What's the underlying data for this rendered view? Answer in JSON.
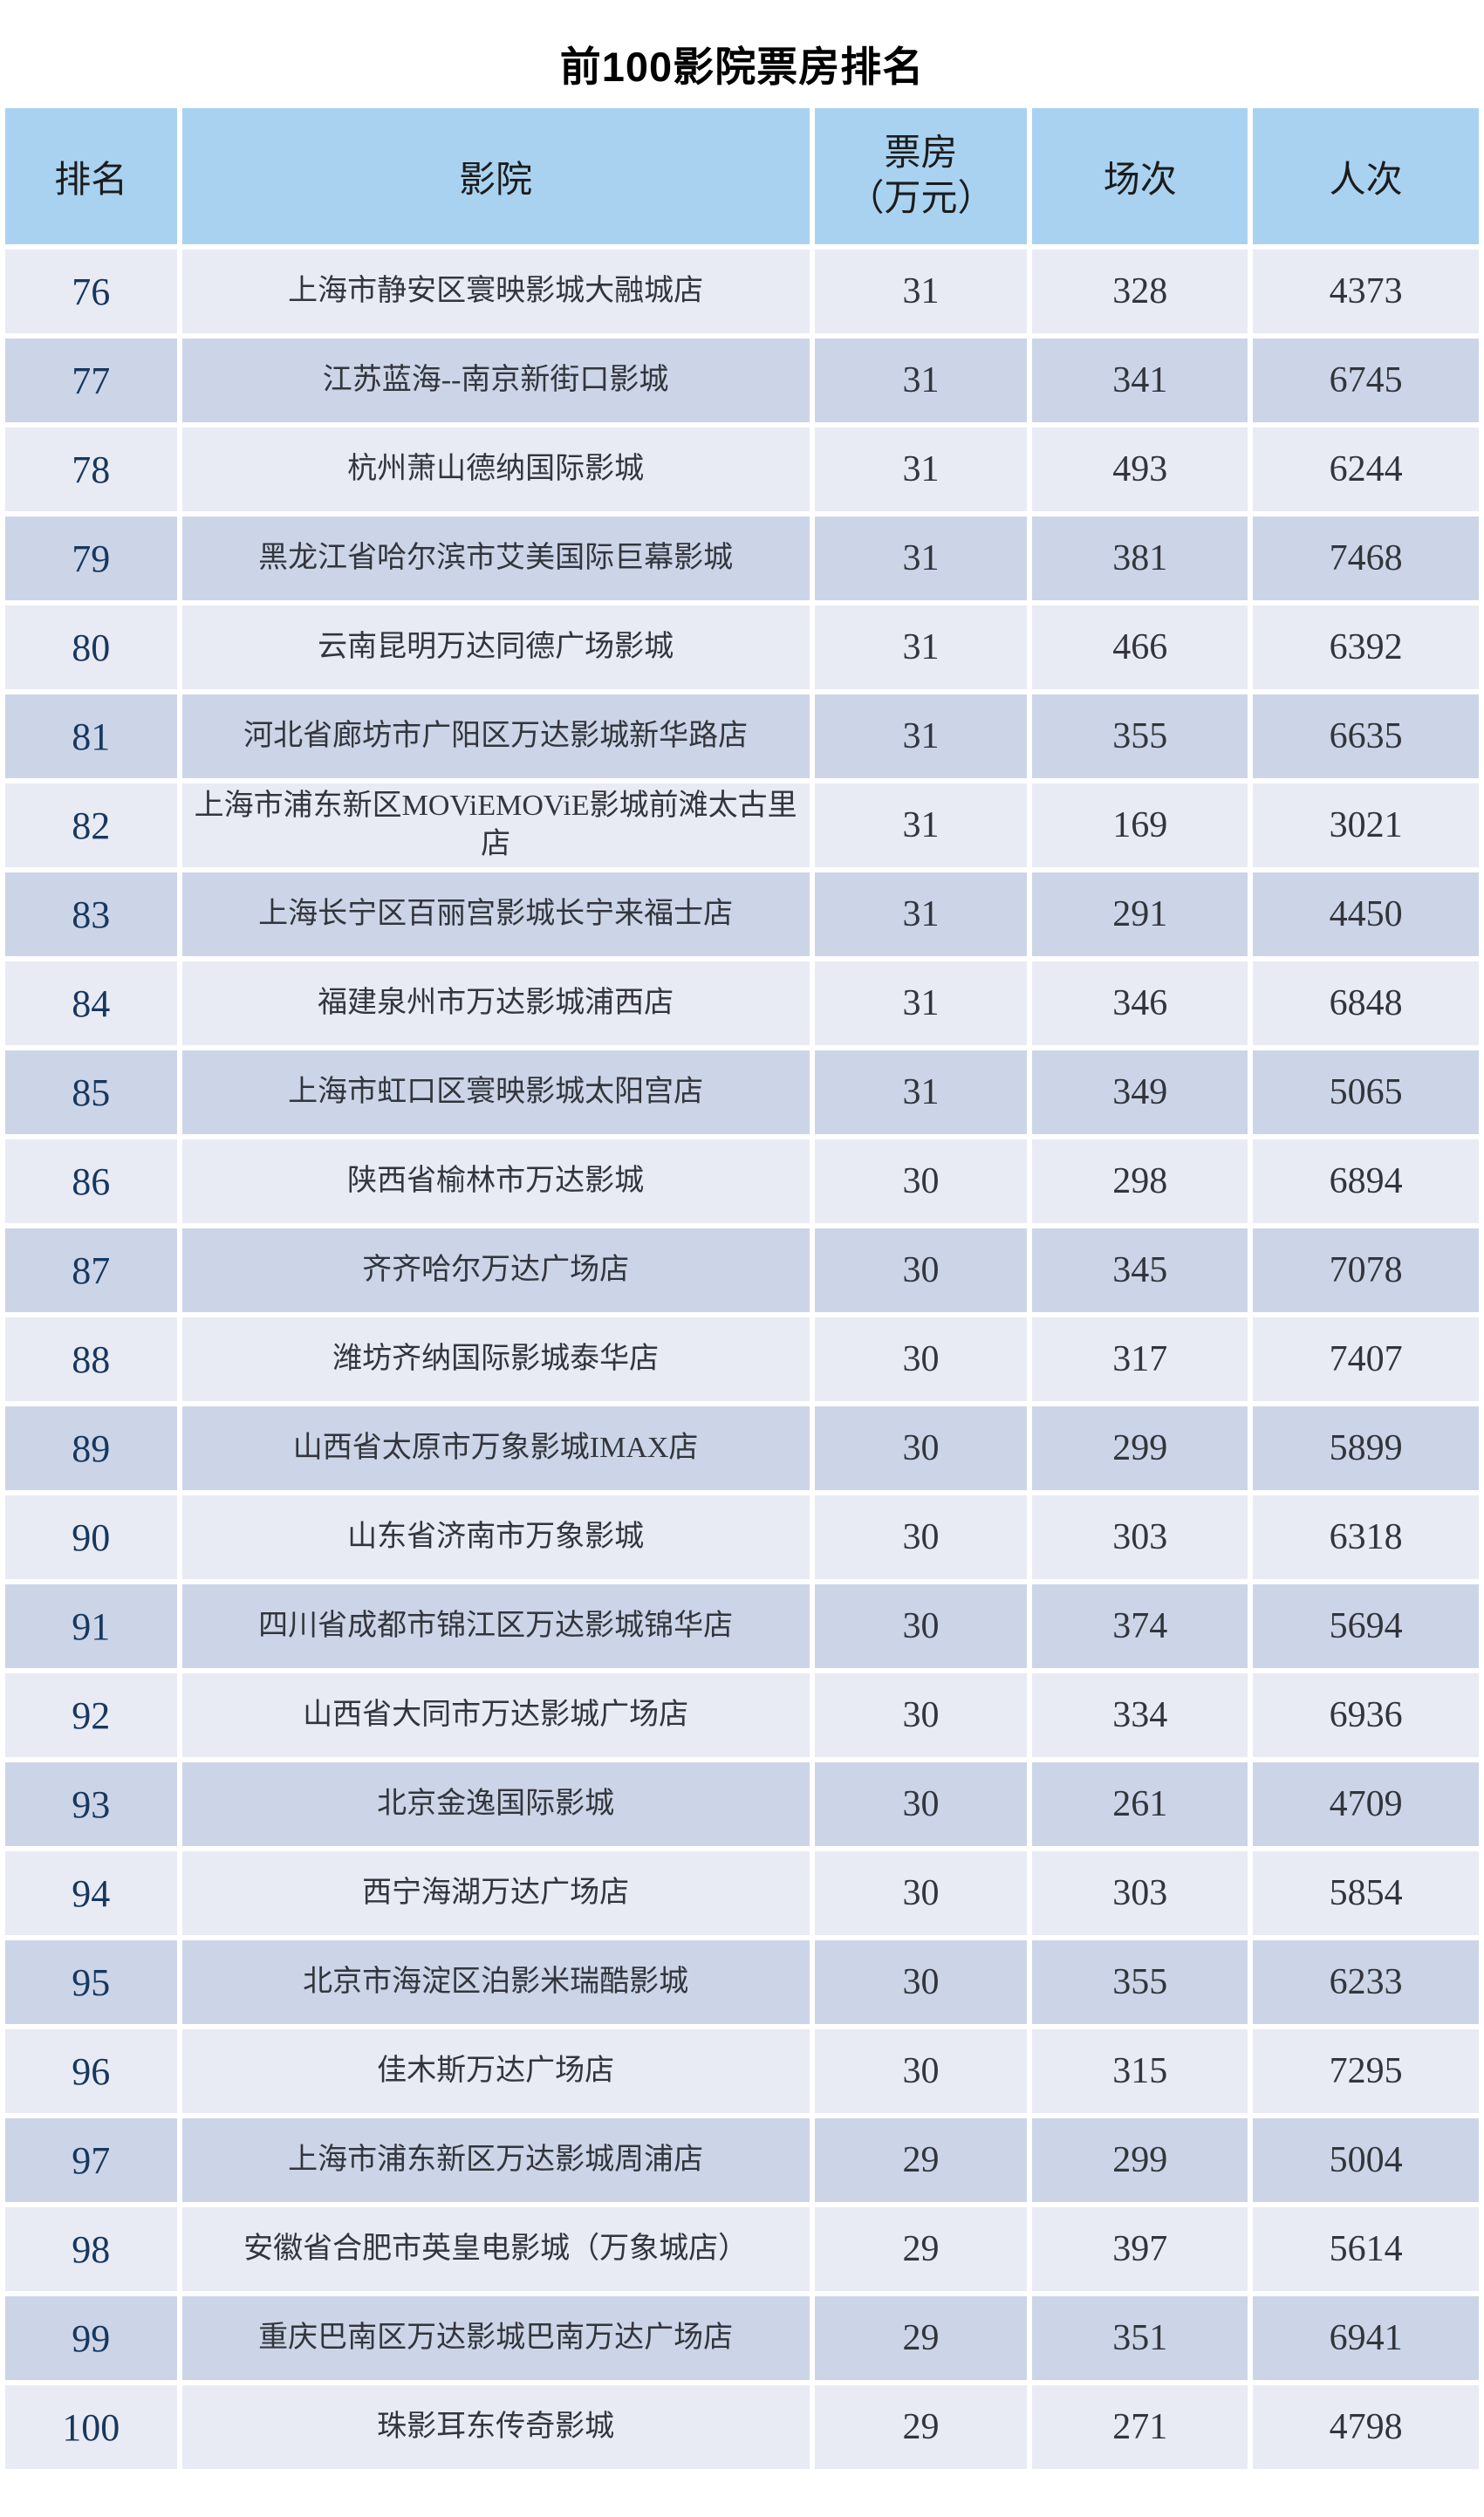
{
  "title": "前100影院票房排名",
  "colors": {
    "header_bg": "#a9d2f1",
    "row_band_light": "#e9ebf4",
    "row_band_dark": "#ccd5e8",
    "rank_text": "#17375e",
    "body_text": "#32353b",
    "title_text": "#000000"
  },
  "table": {
    "headers": [
      "排名",
      "影院",
      "票房\n（万元）",
      "场次",
      "人次"
    ],
    "rows": [
      {
        "rank": "76",
        "cinema": "上海市静安区寰映影城大融城店",
        "box_office": "31",
        "sessions": "328",
        "admissions": "4373"
      },
      {
        "rank": "77",
        "cinema": "江苏蓝海--南京新街口影城",
        "box_office": "31",
        "sessions": "341",
        "admissions": "6745"
      },
      {
        "rank": "78",
        "cinema": "杭州萧山德纳国际影城",
        "box_office": "31",
        "sessions": "493",
        "admissions": "6244"
      },
      {
        "rank": "79",
        "cinema": "黑龙江省哈尔滨市艾美国际巨幕影城",
        "box_office": "31",
        "sessions": "381",
        "admissions": "7468"
      },
      {
        "rank": "80",
        "cinema": "云南昆明万达同德广场影城",
        "box_office": "31",
        "sessions": "466",
        "admissions": "6392"
      },
      {
        "rank": "81",
        "cinema": "河北省廊坊市广阳区万达影城新华路店",
        "box_office": "31",
        "sessions": "355",
        "admissions": "6635"
      },
      {
        "rank": "82",
        "cinema": "上海市浦东新区MOViEMOViE影城前滩太古里店",
        "box_office": "31",
        "sessions": "169",
        "admissions": "3021"
      },
      {
        "rank": "83",
        "cinema": "上海长宁区百丽宫影城长宁来福士店",
        "box_office": "31",
        "sessions": "291",
        "admissions": "4450"
      },
      {
        "rank": "84",
        "cinema": "福建泉州市万达影城浦西店",
        "box_office": "31",
        "sessions": "346",
        "admissions": "6848"
      },
      {
        "rank": "85",
        "cinema": "上海市虹口区寰映影城太阳宫店",
        "box_office": "31",
        "sessions": "349",
        "admissions": "5065"
      },
      {
        "rank": "86",
        "cinema": "陕西省榆林市万达影城",
        "box_office": "30",
        "sessions": "298",
        "admissions": "6894"
      },
      {
        "rank": "87",
        "cinema": "齐齐哈尔万达广场店",
        "box_office": "30",
        "sessions": "345",
        "admissions": "7078"
      },
      {
        "rank": "88",
        "cinema": "潍坊齐纳国际影城泰华店",
        "box_office": "30",
        "sessions": "317",
        "admissions": "7407"
      },
      {
        "rank": "89",
        "cinema": "山西省太原市万象影城IMAX店",
        "box_office": "30",
        "sessions": "299",
        "admissions": "5899"
      },
      {
        "rank": "90",
        "cinema": "山东省济南市万象影城",
        "box_office": "30",
        "sessions": "303",
        "admissions": "6318"
      },
      {
        "rank": "91",
        "cinema": "四川省成都市锦江区万达影城锦华店",
        "box_office": "30",
        "sessions": "374",
        "admissions": "5694"
      },
      {
        "rank": "92",
        "cinema": "山西省大同市万达影城广场店",
        "box_office": "30",
        "sessions": "334",
        "admissions": "6936"
      },
      {
        "rank": "93",
        "cinema": "北京金逸国际影城",
        "box_office": "30",
        "sessions": "261",
        "admissions": "4709"
      },
      {
        "rank": "94",
        "cinema": "西宁海湖万达广场店",
        "box_office": "30",
        "sessions": "303",
        "admissions": "5854"
      },
      {
        "rank": "95",
        "cinema": "北京市海淀区泊影米瑞酷影城",
        "box_office": "30",
        "sessions": "355",
        "admissions": "6233"
      },
      {
        "rank": "96",
        "cinema": "佳木斯万达广场店",
        "box_office": "30",
        "sessions": "315",
        "admissions": "7295"
      },
      {
        "rank": "97",
        "cinema": "上海市浦东新区万达影城周浦店",
        "box_office": "29",
        "sessions": "299",
        "admissions": "5004"
      },
      {
        "rank": "98",
        "cinema": "安徽省合肥市英皇电影城（万象城店）",
        "box_office": "29",
        "sessions": "397",
        "admissions": "5614"
      },
      {
        "rank": "99",
        "cinema": "重庆巴南区万达影城巴南万达广场店",
        "box_office": "29",
        "sessions": "351",
        "admissions": "6941"
      },
      {
        "rank": "100",
        "cinema": "珠影耳东传奇影城",
        "box_office": "29",
        "sessions": "271",
        "admissions": "4798"
      }
    ]
  }
}
